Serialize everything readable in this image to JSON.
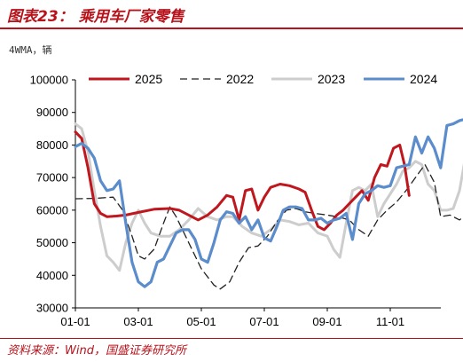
{
  "header": {
    "title": "图表23： 乘用车厂家零售"
  },
  "footer": {
    "source": "资料来源：Wind，国盛证券研究所"
  },
  "chart_data": {
    "type": "line",
    "unit_label": "4WMA，辆",
    "x_ticks": [
      "01-01",
      "03-01",
      "05-01",
      "07-01",
      "09-01",
      "11-01"
    ],
    "ylim": [
      30000,
      100000
    ],
    "y_ticks": [
      30000,
      40000,
      50000,
      60000,
      70000,
      80000,
      90000,
      100000
    ],
    "legend_position": "top",
    "series": [
      {
        "name": "2025",
        "color": "#c0161d",
        "dash": "solid",
        "points": [
          [
            0,
            84000
          ],
          [
            0.2,
            82000
          ],
          [
            0.4,
            73000
          ],
          [
            0.6,
            62000
          ],
          [
            0.8,
            59000
          ],
          [
            1.0,
            58000
          ],
          [
            1.3,
            58200
          ],
          [
            1.6,
            58500
          ],
          [
            2.0,
            59300
          ],
          [
            2.5,
            60300
          ],
          [
            3.0,
            60500
          ],
          [
            3.3,
            60000
          ],
          [
            3.6,
            58500
          ],
          [
            3.9,
            57000
          ],
          [
            4.2,
            58500
          ],
          [
            4.5,
            61000
          ],
          [
            4.8,
            64500
          ],
          [
            5.0,
            64000
          ],
          [
            5.2,
            57000
          ],
          [
            5.4,
            66000
          ],
          [
            5.6,
            66500
          ],
          [
            5.8,
            60000
          ],
          [
            6.0,
            64000
          ],
          [
            6.2,
            67000
          ],
          [
            6.5,
            68000
          ],
          [
            6.8,
            67500
          ],
          [
            7.1,
            66500
          ],
          [
            7.3,
            65500
          ],
          [
            7.5,
            60000
          ],
          [
            7.7,
            55000
          ],
          [
            7.9,
            54000
          ],
          [
            8.1,
            56000
          ],
          [
            8.3,
            58500
          ],
          [
            8.5,
            60000
          ],
          [
            8.7,
            62000
          ],
          [
            8.9,
            64000
          ],
          [
            9.1,
            66000
          ],
          [
            9.3,
            63000
          ],
          [
            9.5,
            70000
          ],
          [
            9.7,
            74000
          ],
          [
            9.9,
            73500
          ],
          [
            10.1,
            79000
          ],
          [
            10.3,
            80000
          ],
          [
            10.45,
            74000
          ],
          [
            10.6,
            64500
          ]
        ]
      },
      {
        "name": "2022",
        "color": "#222222",
        "dash": "8,5",
        "points": [
          [
            0,
            63500
          ],
          [
            0.6,
            63600
          ],
          [
            1.2,
            64000
          ],
          [
            1.5,
            60000
          ],
          [
            1.8,
            52000
          ],
          [
            2.0,
            46000
          ],
          [
            2.2,
            45000
          ],
          [
            2.5,
            48000
          ],
          [
            2.8,
            56000
          ],
          [
            3.0,
            61000
          ],
          [
            3.2,
            58000
          ],
          [
            3.6,
            50000
          ],
          [
            4.0,
            42000
          ],
          [
            4.4,
            37000
          ],
          [
            4.6,
            35800
          ],
          [
            4.9,
            38000
          ],
          [
            5.2,
            44000
          ],
          [
            5.5,
            48500
          ],
          [
            5.8,
            49000
          ],
          [
            6.1,
            52000
          ],
          [
            6.4,
            56500
          ],
          [
            6.7,
            60000
          ],
          [
            7.0,
            60500
          ],
          [
            7.3,
            59500
          ],
          [
            7.6,
            59000
          ],
          [
            8.0,
            58500
          ],
          [
            8.4,
            57800
          ],
          [
            8.7,
            57000
          ],
          [
            9.0,
            54000
          ],
          [
            9.3,
            52000
          ],
          [
            9.6,
            57000
          ],
          [
            9.9,
            60000
          ],
          [
            10.2,
            62500
          ],
          [
            10.5,
            66000
          ],
          [
            10.8,
            70000
          ],
          [
            11.1,
            74000
          ],
          [
            11.4,
            68500
          ],
          [
            11.6,
            58000
          ],
          [
            11.9,
            58500
          ],
          [
            12.2,
            57000
          ],
          [
            12.6,
            60000
          ],
          [
            12.85,
            67000
          ]
        ]
      },
      {
        "name": "2023",
        "color": "#cdcdcd",
        "dash": "solid",
        "points": [
          [
            0,
            86500
          ],
          [
            0.2,
            85000
          ],
          [
            0.4,
            78000
          ],
          [
            0.6,
            66000
          ],
          [
            0.8,
            55000
          ],
          [
            1.0,
            46000
          ],
          [
            1.2,
            44000
          ],
          [
            1.4,
            41500
          ],
          [
            1.6,
            50000
          ],
          [
            1.8,
            56000
          ],
          [
            2.0,
            60000
          ],
          [
            2.2,
            56000
          ],
          [
            2.4,
            53000
          ],
          [
            2.7,
            52000
          ],
          [
            3.0,
            52000
          ],
          [
            3.3,
            54000
          ],
          [
            3.6,
            57000
          ],
          [
            3.9,
            60500
          ],
          [
            4.2,
            58000
          ],
          [
            4.5,
            57000
          ],
          [
            4.8,
            58000
          ],
          [
            5.0,
            58000
          ],
          [
            5.3,
            55000
          ],
          [
            5.6,
            53000
          ],
          [
            5.9,
            52000
          ],
          [
            6.2,
            54000
          ],
          [
            6.5,
            57000
          ],
          [
            6.8,
            56500
          ],
          [
            7.1,
            55500
          ],
          [
            7.4,
            56000
          ],
          [
            7.7,
            53000
          ],
          [
            8.0,
            52000
          ],
          [
            8.2,
            48000
          ],
          [
            8.4,
            45500
          ],
          [
            8.6,
            56000
          ],
          [
            8.8,
            66000
          ],
          [
            9.0,
            67000
          ],
          [
            9.2,
            66000
          ],
          [
            9.4,
            68000
          ],
          [
            9.6,
            58000
          ],
          [
            9.8,
            62000
          ],
          [
            10.0,
            65000
          ],
          [
            10.2,
            68000
          ],
          [
            10.4,
            72000
          ],
          [
            10.6,
            73000
          ],
          [
            10.8,
            75000
          ],
          [
            11.0,
            74000
          ],
          [
            11.2,
            68000
          ],
          [
            11.4,
            66000
          ],
          [
            11.6,
            60000
          ],
          [
            11.8,
            60000
          ],
          [
            12.0,
            60500
          ],
          [
            12.2,
            66000
          ],
          [
            12.4,
            77000
          ],
          [
            12.6,
            76000
          ],
          [
            12.75,
            77000
          ],
          [
            12.95,
            70000
          ]
        ]
      },
      {
        "name": "2024",
        "color": "#5b8ccc",
        "dash": "solid",
        "points": [
          [
            0,
            79500
          ],
          [
            0.2,
            80500
          ],
          [
            0.4,
            79000
          ],
          [
            0.6,
            76000
          ],
          [
            0.8,
            69000
          ],
          [
            1.0,
            66000
          ],
          [
            1.2,
            66500
          ],
          [
            1.4,
            69000
          ],
          [
            1.6,
            56000
          ],
          [
            1.8,
            44000
          ],
          [
            2.0,
            38000
          ],
          [
            2.2,
            36500
          ],
          [
            2.4,
            38000
          ],
          [
            2.6,
            44000
          ],
          [
            2.8,
            45000
          ],
          [
            3.0,
            49000
          ],
          [
            3.2,
            53000
          ],
          [
            3.4,
            54000
          ],
          [
            3.6,
            54000
          ],
          [
            3.8,
            51000
          ],
          [
            4.0,
            45000
          ],
          [
            4.2,
            44000
          ],
          [
            4.4,
            50000
          ],
          [
            4.6,
            57000
          ],
          [
            4.8,
            59500
          ],
          [
            5.0,
            59000
          ],
          [
            5.2,
            56000
          ],
          [
            5.4,
            58000
          ],
          [
            5.6,
            54000
          ],
          [
            5.8,
            57000
          ],
          [
            6.0,
            51500
          ],
          [
            6.2,
            50500
          ],
          [
            6.4,
            55000
          ],
          [
            6.6,
            60000
          ],
          [
            6.8,
            61000
          ],
          [
            7.0,
            61000
          ],
          [
            7.2,
            60500
          ],
          [
            7.4,
            57000
          ],
          [
            7.6,
            57000
          ],
          [
            7.8,
            57500
          ],
          [
            8.0,
            56000
          ],
          [
            8.2,
            57000
          ],
          [
            8.4,
            57500
          ],
          [
            8.6,
            59000
          ],
          [
            8.8,
            51000
          ],
          [
            9.0,
            62000
          ],
          [
            9.2,
            65000
          ],
          [
            9.4,
            66000
          ],
          [
            9.6,
            67500
          ],
          [
            9.8,
            67000
          ],
          [
            10.0,
            67500
          ],
          [
            10.2,
            73000
          ],
          [
            10.4,
            73500
          ],
          [
            10.6,
            74000
          ],
          [
            10.8,
            82500
          ],
          [
            11.0,
            77500
          ],
          [
            11.2,
            82500
          ],
          [
            11.4,
            79000
          ],
          [
            11.6,
            73000
          ],
          [
            11.8,
            86000
          ],
          [
            12.0,
            86500
          ],
          [
            12.2,
            87500
          ],
          [
            12.4,
            88000
          ],
          [
            12.6,
            89500
          ],
          [
            12.85,
            92000
          ]
        ]
      }
    ]
  }
}
